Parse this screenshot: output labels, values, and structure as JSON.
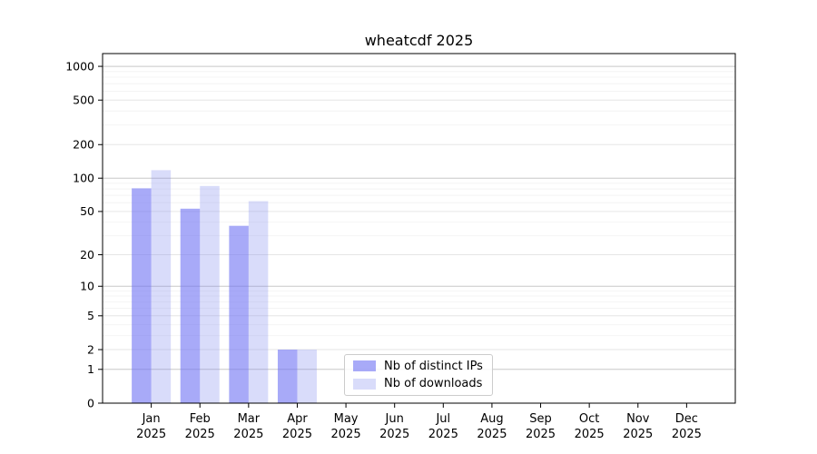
{
  "chart_data": {
    "type": "bar",
    "title": "wheatcdf 2025",
    "categories": [
      "Jan",
      "Feb",
      "Mar",
      "Apr",
      "May",
      "Jun",
      "Jul",
      "Aug",
      "Sep",
      "Oct",
      "Nov",
      "Dec"
    ],
    "category_year": "2025",
    "series": [
      {
        "name": "Nb of distinct IPs",
        "color": "rgba(110,113,243,0.6)",
        "values": [
          81,
          53,
          37,
          2,
          0,
          0,
          0,
          0,
          0,
          0,
          0,
          0
        ]
      },
      {
        "name": "Nb of downloads",
        "color": "rgba(128,138,238,0.3)",
        "values": [
          118,
          85,
          62,
          2,
          0,
          0,
          0,
          0,
          0,
          0,
          0,
          0
        ]
      }
    ],
    "yscale": "log1p",
    "ylim": [
      0,
      1300
    ],
    "yticks": [
      0,
      1,
      2,
      5,
      10,
      20,
      50,
      100,
      200,
      500,
      1000
    ],
    "yticks_minor": [
      3,
      4,
      6,
      7,
      8,
      9,
      30,
      40,
      60,
      70,
      80,
      90,
      300,
      400,
      600,
      700,
      800,
      900
    ],
    "grid": true,
    "legend_position": "lower-center"
  },
  "colors": {
    "background": "#ffffff",
    "axis": "#000000",
    "grid_major": "#c8c8c8",
    "grid_submajor": "#e6e6e6",
    "grid_minor": "#f4f4f4",
    "bar_distinct_ips": "rgba(110,113,243,0.6)",
    "bar_downloads": "rgba(128,138,238,0.3)"
  }
}
